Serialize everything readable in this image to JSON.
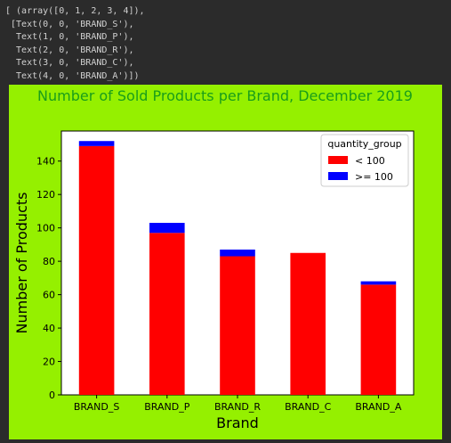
{
  "console": {
    "lines": [
      "[ (array([0, 1, 2, 3, 4]),",
      " [Text(0, 0, 'BRAND_S'),",
      "  Text(1, 0, 'BRAND_P'),",
      "  Text(2, 0, 'BRAND_R'),",
      "  Text(3, 0, 'BRAND_C'),",
      "  Text(4, 0, 'BRAND_A')])"
    ]
  },
  "chart_data": {
    "type": "bar",
    "stacked": true,
    "title": "Number of Sold Products per Brand, December 2019",
    "xlabel": "Brand",
    "ylabel": "Number of Products",
    "categories": [
      "BRAND_S",
      "BRAND_P",
      "BRAND_R",
      "BRAND_C",
      "BRAND_A"
    ],
    "series": [
      {
        "name": "< 100",
        "color": "#ff0000",
        "values": [
          149,
          97,
          83,
          85,
          66
        ]
      },
      {
        "name": ">= 100",
        "color": "#0000ff",
        "values": [
          3,
          6,
          4,
          0,
          2
        ]
      }
    ],
    "ylim": [
      0,
      158
    ],
    "yticks": [
      "0",
      "20",
      "40",
      "60",
      "80",
      "100",
      "120",
      "140"
    ],
    "legend": {
      "title": "quantity_group",
      "placement": "top-right"
    },
    "title_color": "#1a9e1a",
    "figure_background": "#95f000",
    "plot_background": "#ffffff",
    "grid": false
  }
}
